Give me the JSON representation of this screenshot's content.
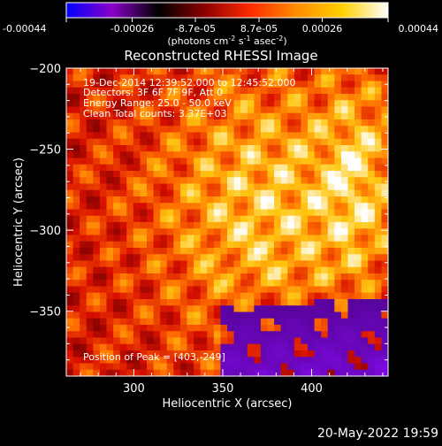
{
  "chart_data": {
    "type": "heatmap",
    "title": "Reconstructed RHESSI Image",
    "xlabel": "Heliocentric X (arcsec)",
    "ylabel": "Heliocentric Y (arcsec)",
    "xlim": [
      262,
      443
    ],
    "ylim": [
      -390,
      -200
    ],
    "x_ticks": [
      300,
      350,
      400
    ],
    "y_ticks": [
      -200,
      -250,
      -300,
      -350
    ],
    "colorbar": {
      "label_main": "(photons cm",
      "label_sup1": "-2",
      "label_mid1": " s",
      "label_sup2": "-1",
      "label_mid2": " asec",
      "label_sup3": "-2",
      "label_end": ")",
      "range": [
        -0.00044,
        0.00044
      ],
      "tick_values": [
        -0.00044,
        -0.00026,
        -8.7e-05,
        8.7e-05,
        0.00026,
        0.00044
      ],
      "tick_labels": [
        "-0.00044",
        "-0.00026",
        "-8.7e-05",
        "8.7e-05",
        "0.00026",
        "0.00044"
      ],
      "colormap": [
        "#0000ff",
        "#8a00c8",
        "#000000",
        "#8b0000",
        "#ff2a00",
        "#ff8c00",
        "#ffd000",
        "#ffffff"
      ]
    },
    "annotations": [
      "19-Dec-2014 12:39:52.000 to 12:45:52.000",
      "Detectors: 3F 6F 7F 9F, Att 0",
      "Energy Range: 25.0 - 50.0 keV",
      "Clean     Total counts: 3.37E+03",
      "Position of Peak = [403,-249]"
    ],
    "peak": [
      403,
      -249
    ]
  },
  "footer": {
    "timestamp": "20-May-2022 19:59"
  }
}
